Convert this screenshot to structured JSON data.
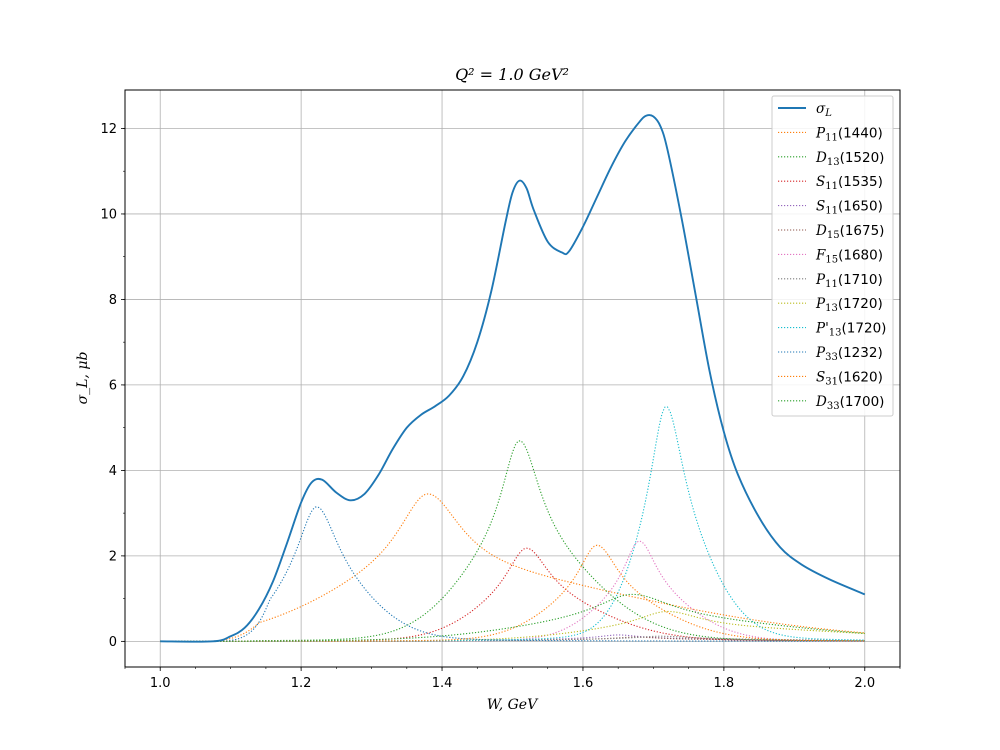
{
  "chart_data": {
    "type": "line",
    "title": "Q² = 1.0 GeV²",
    "xlabel": "W, GeV",
    "ylabel": "σ_L, μb",
    "xlim": [
      0.95,
      2.05
    ],
    "ylim": [
      -0.6,
      12.9
    ],
    "xticks": [
      1.0,
      1.2,
      1.4,
      1.6,
      1.8,
      2.0
    ],
    "xtick_labels": [
      "1.0",
      "1.2",
      "1.4",
      "1.6",
      "1.8",
      "2.0"
    ],
    "yticks": [
      0,
      2,
      4,
      6,
      8,
      10,
      12
    ],
    "ytick_labels": [
      "0",
      "2",
      "4",
      "6",
      "8",
      "10",
      "12"
    ],
    "grid": true,
    "legend_position": "top-right",
    "series": [
      {
        "name": "σL",
        "label_main": "σ",
        "label_sub": "L",
        "label_tail": "",
        "style": "solid",
        "color": "#1f77b4",
        "x": [
          1.0,
          1.075,
          1.1,
          1.12,
          1.14,
          1.16,
          1.18,
          1.2,
          1.215,
          1.23,
          1.25,
          1.27,
          1.29,
          1.31,
          1.33,
          1.35,
          1.37,
          1.39,
          1.41,
          1.43,
          1.45,
          1.47,
          1.49,
          1.5,
          1.51,
          1.52,
          1.53,
          1.55,
          1.57,
          1.58,
          1.6,
          1.62,
          1.64,
          1.66,
          1.68,
          1.69,
          1.7,
          1.71,
          1.72,
          1.74,
          1.76,
          1.78,
          1.8,
          1.82,
          1.85,
          1.88,
          1.91,
          1.95,
          2.0
        ],
        "y": [
          0.0,
          0.0,
          0.12,
          0.32,
          0.75,
          1.4,
          2.3,
          3.25,
          3.72,
          3.78,
          3.48,
          3.3,
          3.45,
          3.9,
          4.5,
          5.0,
          5.3,
          5.5,
          5.75,
          6.2,
          7.0,
          8.2,
          9.8,
          10.5,
          10.78,
          10.6,
          10.1,
          9.35,
          9.1,
          9.12,
          9.7,
          10.4,
          11.1,
          11.7,
          12.15,
          12.3,
          12.28,
          12.05,
          11.5,
          9.9,
          8.1,
          6.3,
          4.9,
          3.9,
          2.9,
          2.2,
          1.8,
          1.45,
          1.1
        ]
      },
      {
        "name": "P11(1440)",
        "label_main": "P",
        "label_sub": "11",
        "label_tail": "(1440)",
        "style": "dotted",
        "color": "#ff7f0e",
        "peak": 1.38,
        "amp": 3.45,
        "width": 0.1,
        "rise": 1.06,
        "hw_left": 0.14,
        "hw_right": 0.3,
        "end": 0.12
      },
      {
        "name": "D13(1520)",
        "label_main": "D",
        "label_sub": "13",
        "label_tail": "(1520)",
        "style": "dotted",
        "color": "#2ca02c",
        "peak": 1.51,
        "amp": 4.7,
        "width": 0.06,
        "rise": 1.06,
        "hw_left": 0.08,
        "hw_right": 0.1,
        "end": 0.05
      },
      {
        "name": "S11(1535)",
        "label_main": "S",
        "label_sub": "11",
        "label_tail": "(1535)",
        "style": "dotted",
        "color": "#d62728",
        "peak": 1.52,
        "amp": 2.18,
        "width": 0.065,
        "rise": 1.06,
        "hw_left": 0.07,
        "hw_right": 0.1,
        "end": 0.05
      },
      {
        "name": "S11(1650)",
        "label_main": "S",
        "label_sub": "11",
        "label_tail": "(1650)",
        "style": "dotted",
        "color": "#9467bd",
        "peak": 1.65,
        "amp": 0.15,
        "width": 0.06,
        "rise": 1.06,
        "hw_left": 0.1,
        "hw_right": 0.15,
        "end": 0.01
      },
      {
        "name": "D15(1675)",
        "label_main": "D",
        "label_sub": "15",
        "label_tail": "(1675)",
        "style": "dotted",
        "color": "#8c564b",
        "peak": 1.675,
        "amp": 0.1,
        "width": 0.07,
        "rise": 1.06,
        "hw_left": 0.15,
        "hw_right": 0.2,
        "end": 0.03
      },
      {
        "name": "F15(1680)",
        "label_main": "F",
        "label_sub": "15",
        "label_tail": "(1680)",
        "style": "dotted",
        "color": "#e377c2",
        "peak": 1.68,
        "amp": 2.35,
        "width": 0.05,
        "rise": 1.06,
        "hw_left": 0.06,
        "hw_right": 0.07,
        "end": 0.03
      },
      {
        "name": "P11(1710)",
        "label_main": "P",
        "label_sub": "11",
        "label_tail": "(1710)",
        "style": "dotted",
        "color": "#7f7f7f",
        "peak": 1.71,
        "amp": 0.12,
        "width": 0.08,
        "rise": 1.06,
        "hw_left": 0.15,
        "hw_right": 0.2,
        "end": 0.01
      },
      {
        "name": "P13(1720)",
        "label_main": "P",
        "label_sub": "13",
        "label_tail": "(1720)",
        "style": "dotted",
        "color": "#bcbd22",
        "peak": 1.72,
        "amp": 0.7,
        "width": 0.1,
        "rise": 1.06,
        "hw_left": 0.12,
        "hw_right": 0.25,
        "end": 0.25
      },
      {
        "name": "P'13(1720)",
        "label_main": "P'",
        "label_sub": "13",
        "label_tail": "(1720)",
        "style": "dotted",
        "color": "#17becf",
        "peak": 1.718,
        "amp": 5.5,
        "width": 0.05,
        "rise": 1.06,
        "hw_left": 0.045,
        "hw_right": 0.06,
        "end": 0.25
      },
      {
        "name": "P33(1232)",
        "label_main": "P",
        "label_sub": "33",
        "label_tail": "(1232)",
        "style": "dotted",
        "color": "#1f77b4",
        "peak": 1.222,
        "amp": 3.15,
        "width": 0.06,
        "rise": 1.075,
        "hw_left": 0.055,
        "hw_right": 0.07,
        "end": 0.03
      },
      {
        "name": "S31(1620)",
        "label_main": "S",
        "label_sub": "31",
        "label_tail": "(1620)",
        "style": "dotted",
        "color": "#ff7f0e",
        "peak": 1.62,
        "amp": 2.25,
        "width": 0.06,
        "rise": 1.06,
        "hw_left": 0.07,
        "hw_right": 0.09,
        "end": 0.1
      },
      {
        "name": "D33(1700)",
        "label_main": "D",
        "label_sub": "33",
        "label_tail": "(1700)",
        "style": "dotted",
        "color": "#2ca02c",
        "peak": 1.67,
        "amp": 1.1,
        "width": 0.12,
        "rise": 1.06,
        "hw_left": 0.15,
        "hw_right": 0.22,
        "end": 0.25
      }
    ]
  }
}
